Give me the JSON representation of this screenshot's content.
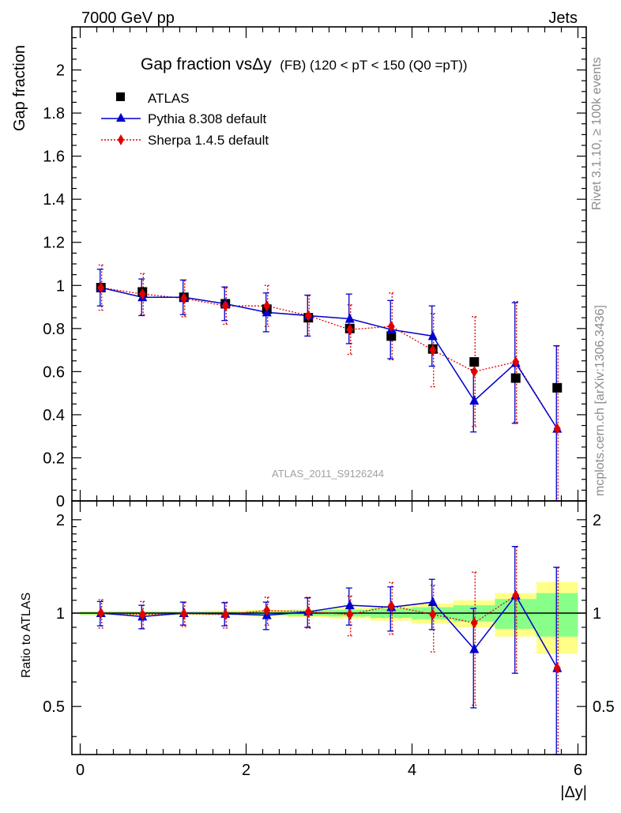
{
  "header": {
    "left": "7000 GeV pp",
    "right": "Jets"
  },
  "side_text": {
    "rivet": "Rivet 3.1.10, ≥ 100k events",
    "mcplots": "mcplots.cern.ch [arXiv:1306.3436]"
  },
  "watermark": "ATLAS_2011_S9126244",
  "chart_data": {
    "type": "scatter",
    "title_main": "Gap fraction vsΔy",
    "title_sub": "(FB) (120 < pT < 150 (Q0 =pT))",
    "xlabel": "|Δy|",
    "ylabel": "Gap fraction",
    "ratio_ylabel": "Ratio to ATLAS",
    "xlim": [
      -0.1,
      6.1
    ],
    "ylim": [
      0,
      2.2
    ],
    "ratio_ylim": [
      0.35,
      2.3
    ],
    "x_ticks": [
      "0",
      "2",
      "4",
      "6"
    ],
    "y_ticks": [
      "0",
      "0.2",
      "0.4",
      "0.6",
      "0.8",
      "1",
      "1.2",
      "1.4",
      "1.6",
      "1.8",
      "2"
    ],
    "ratio_ticks": [
      "0.5",
      "1",
      "2"
    ],
    "x": [
      0.25,
      0.75,
      1.25,
      1.75,
      2.25,
      2.75,
      3.25,
      3.75,
      4.25,
      4.75,
      5.25,
      5.75
    ],
    "series": [
      {
        "name": "ATLAS",
        "color": "#000000",
        "marker": "square",
        "values": [
          0.99,
          0.97,
          0.945,
          0.915,
          0.89,
          0.85,
          0.8,
          0.765,
          0.705,
          0.645,
          0.57,
          0.525
        ]
      },
      {
        "name": "Pythia 8.308 default",
        "color": "#0000cc",
        "marker": "triangle",
        "values": [
          0.99,
          0.945,
          0.945,
          0.915,
          0.875,
          0.86,
          0.845,
          0.795,
          0.765,
          0.465,
          0.64,
          0.335
        ],
        "err": [
          0.085,
          0.085,
          0.08,
          0.078,
          0.09,
          0.095,
          0.115,
          0.135,
          0.14,
          0.145,
          0.28,
          0.385
        ]
      },
      {
        "name": "Sherpa 1.4.5 default",
        "color": "#e00000",
        "marker": "diamond",
        "values": [
          0.99,
          0.96,
          0.94,
          0.905,
          0.905,
          0.86,
          0.795,
          0.81,
          0.7,
          0.6,
          0.645,
          0.335
        ],
        "err": [
          0.105,
          0.095,
          0.085,
          0.085,
          0.095,
          0.095,
          0.115,
          0.155,
          0.17,
          0.255,
          0.28,
          0.385
        ]
      }
    ],
    "ratio": {
      "pythia": [
        1.0,
        0.975,
        1.0,
        0.995,
        0.985,
        1.01,
        1.06,
        1.045,
        1.085,
        0.765,
        1.14,
        0.665
      ],
      "pythia_err": [
        0.09,
        0.085,
        0.085,
        0.085,
        0.1,
        0.11,
        0.145,
        0.17,
        0.2,
        0.27,
        0.5,
        0.74
      ],
      "sherpa": [
        1.0,
        0.99,
        0.995,
        0.99,
        1.02,
        1.01,
        0.99,
        1.055,
        0.99,
        0.93,
        1.14,
        0.665
      ],
      "sherpa_err": [
        0.105,
        0.1,
        0.09,
        0.095,
        0.105,
        0.115,
        0.145,
        0.2,
        0.24,
        0.425,
        0.5,
        0.74
      ],
      "band_green": [
        0.01,
        0.01,
        0.01,
        0.01,
        0.015,
        0.02,
        0.025,
        0.035,
        0.045,
        0.06,
        0.11,
        0.16
      ],
      "band_yellow": [
        0.015,
        0.015,
        0.015,
        0.02,
        0.025,
        0.03,
        0.04,
        0.055,
        0.075,
        0.1,
        0.16,
        0.26
      ]
    }
  }
}
